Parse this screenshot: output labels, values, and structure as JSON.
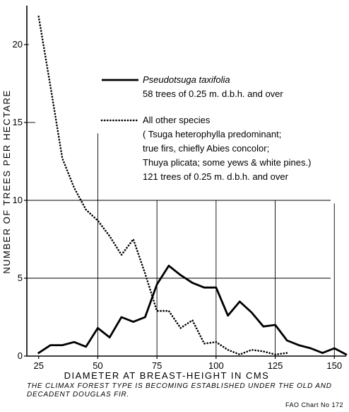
{
  "chart_data": {
    "type": "line",
    "xlabel": "DIAMETER AT BREAST-HEIGHT IN CMS",
    "ylabel": "NUMBER OF TREES PER HECTARE",
    "xlim": [
      20,
      155
    ],
    "ylim": [
      0,
      22.5
    ],
    "xticks": [
      25,
      50,
      75,
      100,
      125,
      150
    ],
    "yticks": [
      0,
      5,
      10,
      15,
      20
    ],
    "grid": "partial",
    "legend_placement": "upper-right",
    "series": [
      {
        "name": "Pseudotsuga taxifolia",
        "legend_lines": [
          "Pseudotsuga taxifolia",
          "58 trees of 0.25 m. d.b.h. and over"
        ],
        "style": "solid",
        "color": "#000000",
        "x": [
          25,
          30,
          35,
          40,
          45,
          50,
          55,
          60,
          65,
          70,
          75,
          80,
          85,
          90,
          95,
          100,
          105,
          110,
          115,
          120,
          125,
          130,
          135,
          140,
          145,
          150,
          155
        ],
        "y": [
          0.2,
          0.7,
          0.7,
          0.9,
          0.6,
          1.8,
          1.2,
          2.5,
          2.2,
          2.5,
          4.6,
          5.8,
          5.2,
          4.7,
          4.4,
          4.4,
          2.6,
          3.5,
          2.8,
          1.9,
          2.0,
          1.0,
          0.7,
          0.5,
          0.2,
          0.5,
          0.1
        ]
      },
      {
        "name": "All other species",
        "legend_lines": [
          "All other species",
          "( Tsuga heterophylla predominant;",
          "true firs, chiefly Abies concolor;",
          "Thuya plicata; some yews & white pines.)",
          "121 trees of 0.25 m. d.b.h. and over"
        ],
        "style": "dotted",
        "color": "#000000",
        "x": [
          25,
          30,
          35,
          40,
          45,
          50,
          55,
          60,
          65,
          70,
          75,
          80,
          85,
          90,
          95,
          100,
          105,
          110,
          115,
          120,
          125,
          130
        ],
        "y": [
          21.8,
          17.3,
          12.7,
          10.8,
          9.4,
          8.7,
          7.7,
          6.5,
          7.5,
          5.3,
          2.9,
          2.9,
          1.8,
          2.3,
          0.8,
          0.9,
          0.4,
          0.1,
          0.4,
          0.3,
          0.1,
          0.2
        ]
      }
    ]
  },
  "caption": "THE CLIMAX FOREST TYPE IS BECOMING ESTABLISHED UNDER THE OLD AND DECADENT DOUGLAS FIR.",
  "credit": "FAO Chart No 172"
}
